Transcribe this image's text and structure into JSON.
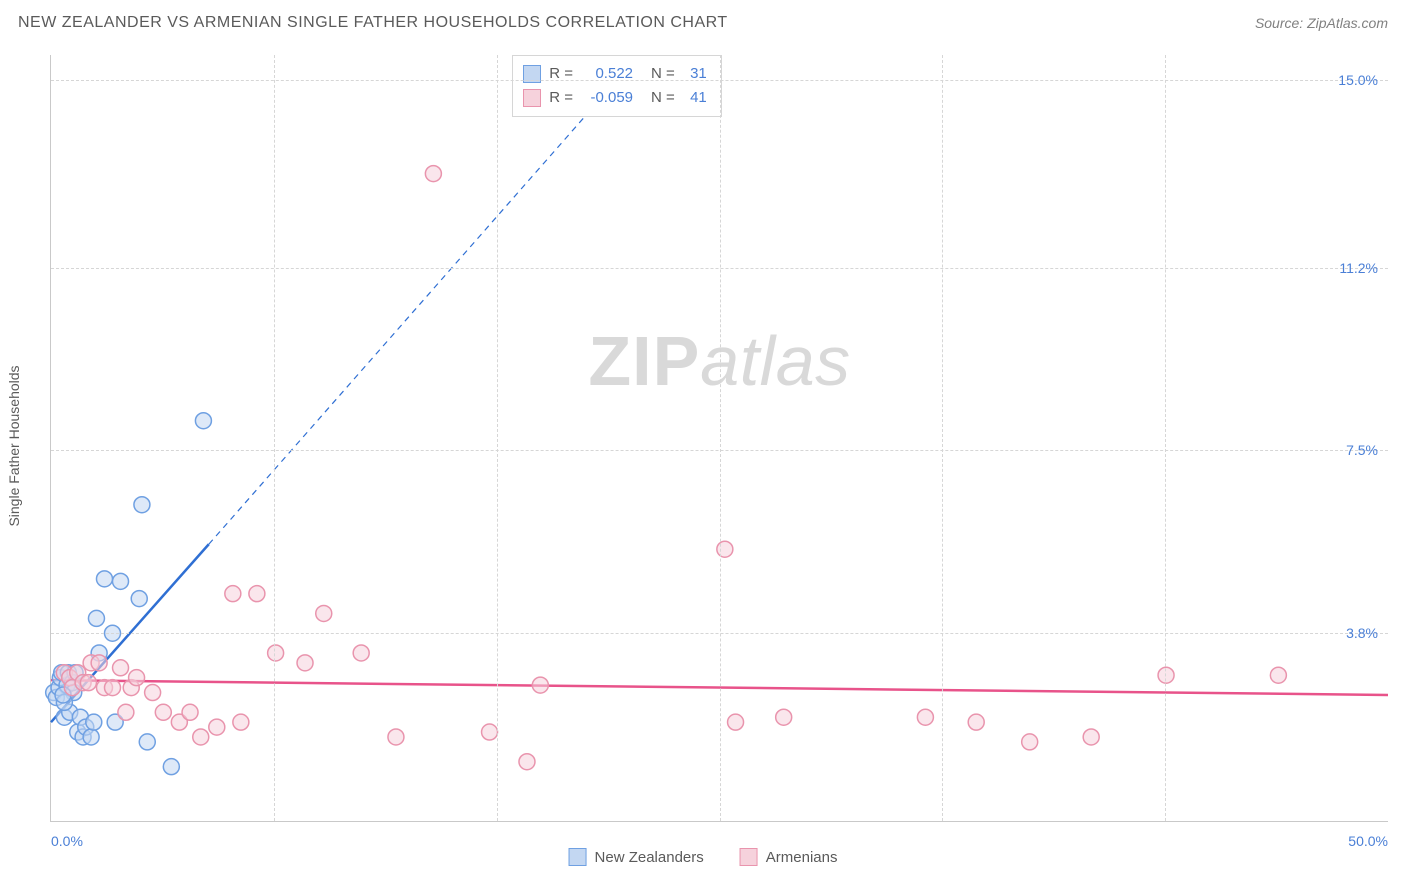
{
  "title": "NEW ZEALANDER VS ARMENIAN SINGLE FATHER HOUSEHOLDS CORRELATION CHART",
  "source_label": "Source: ZipAtlas.com",
  "y_axis_title": "Single Father Households",
  "watermark": {
    "zip": "ZIP",
    "atlas": "atlas"
  },
  "chart": {
    "type": "scatter",
    "xlim": [
      0,
      50
    ],
    "ylim": [
      0,
      15.5
    ],
    "xticks": [
      0.0,
      50.0
    ],
    "xtick_labels": [
      "0.0%",
      "50.0%"
    ],
    "yticks": [
      3.8,
      7.5,
      11.2,
      15.0
    ],
    "ytick_labels": [
      "3.8%",
      "7.5%",
      "11.2%",
      "15.0%"
    ],
    "vgrid_positions": [
      8.33,
      16.67,
      25.0,
      33.33,
      41.67
    ],
    "background_color": "#ffffff",
    "grid_color": "#d6d6d6",
    "axis_color": "#c9c9c9",
    "tick_label_color": "#4a7fd6",
    "marker_radius": 8,
    "marker_stroke_width": 1.5,
    "series": [
      {
        "name": "New Zealanders",
        "fill": "#c3d7f2",
        "stroke": "#6fa0e2",
        "fill_opacity": 0.55,
        "trend": {
          "x1": 0.0,
          "y1": 2.0,
          "x2": 5.9,
          "y2": 5.6,
          "solid_color": "#2f6fd3",
          "solid_width": 2.5,
          "dashed_extend_x": 21.5,
          "dashed_extend_y": 15.2,
          "dash": "6,5"
        },
        "points": [
          [
            0.1,
            2.6
          ],
          [
            0.2,
            2.5
          ],
          [
            0.3,
            2.7
          ],
          [
            0.35,
            2.9
          ],
          [
            0.4,
            3.0
          ],
          [
            0.5,
            2.1
          ],
          [
            0.6,
            2.75
          ],
          [
            0.65,
            3.0
          ],
          [
            0.7,
            2.2
          ],
          [
            0.8,
            2.8
          ],
          [
            0.85,
            2.6
          ],
          [
            0.9,
            3.0
          ],
          [
            1.0,
            1.8
          ],
          [
            1.1,
            2.1
          ],
          [
            1.2,
            1.7
          ],
          [
            1.3,
            1.9
          ],
          [
            1.5,
            1.7
          ],
          [
            1.6,
            2.0
          ],
          [
            1.7,
            4.1
          ],
          [
            1.8,
            3.4
          ],
          [
            2.0,
            4.9
          ],
          [
            2.3,
            3.8
          ],
          [
            2.4,
            2.0
          ],
          [
            2.6,
            4.85
          ],
          [
            3.3,
            4.5
          ],
          [
            3.4,
            6.4
          ],
          [
            3.6,
            1.6
          ],
          [
            4.5,
            1.1
          ],
          [
            5.7,
            8.1
          ],
          [
            0.5,
            2.4
          ],
          [
            0.45,
            2.55
          ]
        ]
      },
      {
        "name": "Armenians",
        "fill": "#f6d2dc",
        "stroke": "#e994ad",
        "fill_opacity": 0.55,
        "trend": {
          "x1": 0.0,
          "y1": 2.85,
          "x2": 50.0,
          "y2": 2.55,
          "solid_color": "#e8538a",
          "solid_width": 2.5
        },
        "points": [
          [
            0.5,
            3.0
          ],
          [
            0.7,
            2.9
          ],
          [
            0.8,
            2.7
          ],
          [
            1.0,
            3.0
          ],
          [
            1.2,
            2.8
          ],
          [
            1.4,
            2.8
          ],
          [
            1.5,
            3.2
          ],
          [
            1.8,
            3.2
          ],
          [
            2.0,
            2.7
          ],
          [
            2.3,
            2.7
          ],
          [
            2.6,
            3.1
          ],
          [
            2.8,
            2.2
          ],
          [
            3.0,
            2.7
          ],
          [
            3.2,
            2.9
          ],
          [
            3.8,
            2.6
          ],
          [
            4.2,
            2.2
          ],
          [
            4.8,
            2.0
          ],
          [
            5.2,
            2.2
          ],
          [
            5.6,
            1.7
          ],
          [
            6.2,
            1.9
          ],
          [
            6.8,
            4.6
          ],
          [
            7.1,
            2.0
          ],
          [
            7.7,
            4.6
          ],
          [
            8.4,
            3.4
          ],
          [
            9.5,
            3.2
          ],
          [
            10.2,
            4.2
          ],
          [
            11.6,
            3.4
          ],
          [
            12.9,
            1.7
          ],
          [
            14.3,
            13.1
          ],
          [
            16.4,
            1.8
          ],
          [
            17.8,
            1.2
          ],
          [
            18.3,
            2.75
          ],
          [
            25.2,
            5.5
          ],
          [
            25.6,
            2.0
          ],
          [
            27.4,
            2.1
          ],
          [
            32.7,
            2.1
          ],
          [
            34.6,
            2.0
          ],
          [
            36.6,
            1.6
          ],
          [
            38.9,
            1.7
          ],
          [
            41.7,
            2.95
          ],
          [
            45.9,
            2.95
          ]
        ]
      }
    ],
    "stats": [
      {
        "series": 0,
        "R": "0.522",
        "N": "31"
      },
      {
        "series": 1,
        "R": "-0.059",
        "N": "41"
      }
    ],
    "stats_labels": {
      "R": "R =",
      "N": "N ="
    }
  },
  "legend_series": [
    "New Zealanders",
    "Armenians"
  ]
}
